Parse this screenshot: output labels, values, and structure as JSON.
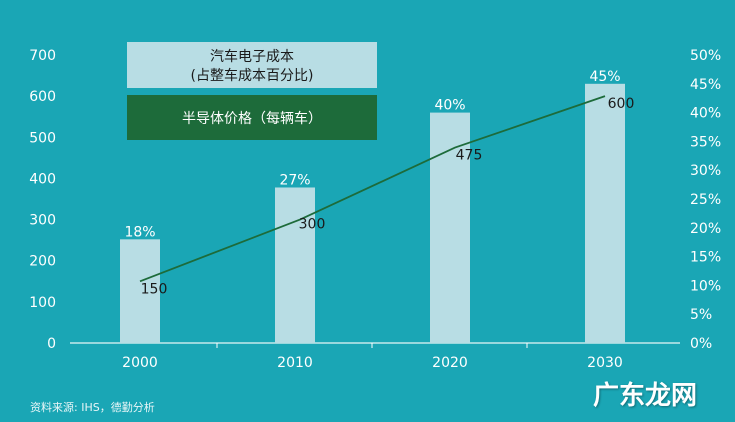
{
  "chart_data": {
    "type": "bar",
    "categories": [
      "2000",
      "2010",
      "2020",
      "2030"
    ],
    "series": [
      {
        "name": "汽车电子成本\n(占整车成本百分比)",
        "type": "bar",
        "axis": "right",
        "values": [
          18,
          27,
          40,
          45
        ],
        "labels": [
          "18%",
          "27%",
          "40%",
          "45%"
        ]
      },
      {
        "name": "半导体价格（每辆车）",
        "type": "line",
        "axis": "left",
        "values": [
          150,
          300,
          475,
          600
        ],
        "labels": [
          "150",
          "300",
          "475",
          "600"
        ]
      }
    ],
    "left_axis": {
      "ylim": [
        0,
        700
      ],
      "ticks": [
        "0",
        "100",
        "200",
        "300",
        "400",
        "500",
        "600",
        "700"
      ]
    },
    "right_axis": {
      "ylim": [
        0,
        50
      ],
      "ticks": [
        "0%",
        "5%",
        "10%",
        "15%",
        "20%",
        "25%",
        "30%",
        "35%",
        "40%",
        "45%",
        "50%"
      ]
    },
    "legend_placement": "top-left",
    "grid": false
  },
  "legend": {
    "bar_line1": "汽车电子成本",
    "bar_line2": "(占整车成本百分比)",
    "line_label": "半导体价格（每辆车）"
  },
  "colors": {
    "background": "#1aa6b5",
    "bar": "#b8dde4",
    "line": "#1d6b3a",
    "legend_line_bg": "#1d6b3a",
    "legend_bar_bg": "#b8dde4"
  },
  "source": "资料来源: IHS，德勤分析",
  "watermark": "广东龙网"
}
